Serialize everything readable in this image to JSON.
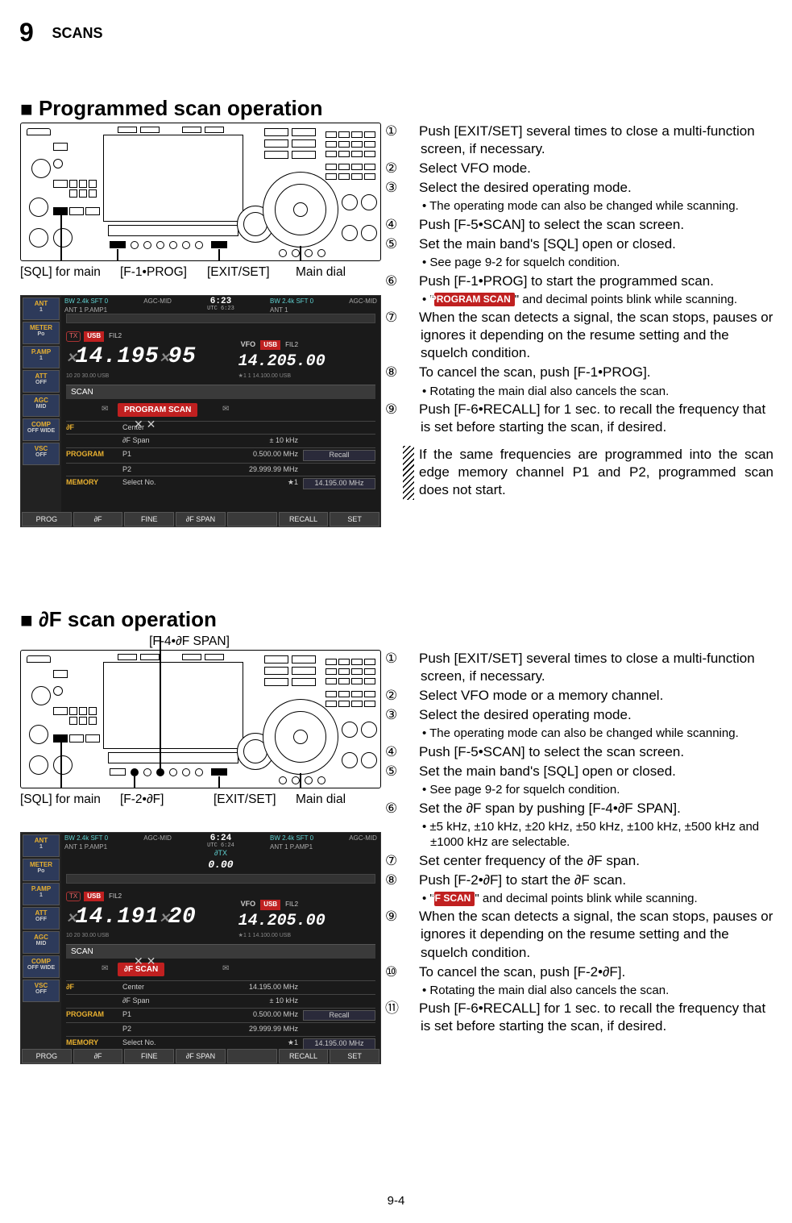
{
  "header": {
    "chapter_num": "9",
    "chapter_title": "SCANS"
  },
  "section1": {
    "heading": "Programmed scan operation",
    "callouts": [
      "[SQL] for main",
      "[F-1•PROG]",
      "[EXIT/SET]",
      "Main dial"
    ],
    "steps": [
      {
        "n": "①",
        "text": "Push [EXIT/SET] several times to close a multi-function screen, if necessary."
      },
      {
        "n": "②",
        "text": "Select VFO mode."
      },
      {
        "n": "③",
        "text": "Select the desired operating mode.",
        "sub": "• The operating mode can also be changed while scanning."
      },
      {
        "n": "④",
        "text": "Push [F-5•SCAN] to select the scan screen."
      },
      {
        "n": "⑤",
        "text": "Set the main band's [SQL] open or closed.",
        "sub": "• See page 9-2 for squelch condition."
      },
      {
        "n": "⑥",
        "text": "Push [F-1•PROG] to start the programmed scan.",
        "sub_pill_prefix": "• \"",
        "sub_pill": "PROGRAM SCAN",
        "sub_pill_suffix": "\" and decimal points blink while scanning."
      },
      {
        "n": "⑦",
        "text": "When the scan detects a signal, the scan stops, pauses or ignores it depending on the resume setting and the squelch condition."
      },
      {
        "n": "⑧",
        "text": "To cancel the scan, push [F-1•PROG].",
        "sub": "• Rotating the main dial also cancels the scan."
      },
      {
        "n": "⑨",
        "text": "Push [F-6•RECALL] for 1 sec. to recall the frequency that is set before starting the scan, if desired."
      }
    ],
    "note": "If the same frequencies are programmed into the scan edge memory channel P1 and P2, programmed scan does not start."
  },
  "section2": {
    "heading": "∂F scan operation",
    "top_callout": "[F-4•∂F SPAN]",
    "callouts": [
      "[SQL] for main",
      "[F-2•∂F]",
      "[EXIT/SET]",
      "Main dial"
    ],
    "steps": [
      {
        "n": "①",
        "text": "Push [EXIT/SET] several times to close a multi-function screen, if necessary."
      },
      {
        "n": "②",
        "text": "Select VFO mode or a memory channel."
      },
      {
        "n": "③",
        "text": "Select the desired operating mode.",
        "sub": "• The operating mode can also be changed while scanning."
      },
      {
        "n": "④",
        "text": "Push [F-5•SCAN] to select the scan screen."
      },
      {
        "n": "⑤",
        "text": "Set the main band's [SQL] open or closed.",
        "sub": "• See page 9-2 for squelch condition."
      },
      {
        "n": "⑥",
        "text": "Set the ∂F span by pushing [F-4•∂F SPAN].",
        "sub": "• ±5 kHz,  ±10 kHz,  ±20 kHz,  ±50 kHz,  ±100 kHz, ±500 kHz and ±1000 kHz are selectable."
      },
      {
        "n": "⑦",
        "text": "Set center frequency of the ∂F span."
      },
      {
        "n": "⑧",
        "text": "Push [F-2•∂F] to start the ∂F scan.",
        "sub_pill_prefix": "• \"",
        "sub_pill": "∂F SCAN",
        "sub_pill_suffix": "\" and decimal points blink while scanning."
      },
      {
        "n": "⑨",
        "text": "When the scan detects a signal, the scan stops, pauses or ignores it depending on the resume setting and the squelch condition."
      },
      {
        "n": "⑩",
        "text": "To cancel the scan, push [F-2•∂F].",
        "sub": "• Rotating the main dial also cancels the scan."
      },
      {
        "n": "⑪",
        "text": "Push [F-6•RECALL] for 1 sec. to recall the frequency that is set before starting the scan, if desired."
      }
    ]
  },
  "screenshot1": {
    "sidebar": [
      {
        "t": "ANT",
        "s": "1"
      },
      {
        "t": "METER",
        "s": "Po"
      },
      {
        "t": "P.AMP",
        "s": "1"
      },
      {
        "t": "ATT",
        "s": "OFF"
      },
      {
        "t": "AGC",
        "s": "MID"
      },
      {
        "t": "COMP",
        "s": "OFF WIDE"
      },
      {
        "t": "VSC",
        "s": "OFF"
      }
    ],
    "botbar": [
      "PROG",
      "∂F",
      "FINE",
      "∂F SPAN",
      "",
      "RECALL",
      "SET"
    ],
    "topinfo_left": "BW 2.4k  SFT   0",
    "topinfo_left2": "ANT 1   P.AMP1",
    "agc": "AGC-MID",
    "clock_time": "6:23",
    "clock_sub": "UTC 6:23",
    "topinfo_right": "BW 2.4k  SFT   0",
    "topinfo_right2": "ANT 1",
    "agc_r": "AGC-MID",
    "freq_main": "14.195.95",
    "meter_text": "10 20 30.00 USB",
    "vfo_label": "VFO",
    "usb": "USB",
    "fil": "FIL2",
    "freq_sub": "14.205.00",
    "sub_info": "★1   1   14.100.00  USB",
    "scan_bar": "SCAN",
    "red_label": "PROGRAM SCAN",
    "table_rows": [
      {
        "c1": "∂F",
        "c2": "Center",
        "c3": "",
        "c4": ""
      },
      {
        "c1": "",
        "c2": "∂F Span",
        "c3": "±   10   kHz",
        "c4": ""
      },
      {
        "c1": "PROGRAM",
        "c2": "P1",
        "c3": "0.500.00  MHz",
        "c4": "Recall"
      },
      {
        "c1": "",
        "c2": "P2",
        "c3": "29.999.99  MHz",
        "c4": ""
      },
      {
        "c1": "MEMORY",
        "c2": "Select  No.",
        "c3": "★1",
        "c4": "14.195.00  MHz"
      }
    ]
  },
  "screenshot2": {
    "sidebar": [
      {
        "t": "ANT",
        "s": "1"
      },
      {
        "t": "METER",
        "s": "Po"
      },
      {
        "t": "P.AMP",
        "s": "1"
      },
      {
        "t": "ATT",
        "s": "OFF"
      },
      {
        "t": "AGC",
        "s": "MID"
      },
      {
        "t": "COMP",
        "s": "OFF WIDE"
      },
      {
        "t": "VSC",
        "s": "OFF"
      }
    ],
    "botbar": [
      "PROG",
      "∂F",
      "FINE",
      "∂F SPAN",
      "",
      "RECALL",
      "SET"
    ],
    "topinfo_left": "BW 2.4k  SFT   0",
    "topinfo_left2": "ANT 1   P.AMP1",
    "agc": "AGC-MID",
    "clock_time": "6:24",
    "clock_sub": "UTC 6:24",
    "topinfo_right": "BW 2.4k  SFT   0",
    "topinfo_right2": "ANT 1      P.AMP1",
    "agc_r": "AGC-MID",
    "rtx": "∂TX",
    "rtx_val": "0.00",
    "freq_main": "14.191.20",
    "meter_text": "10 20 30.00 USB",
    "vfo_label": "VFO",
    "usb": "USB",
    "fil": "FIL2",
    "freq_sub": "14.205.00",
    "sub_info": "★1   1   14.100.00  USB",
    "scan_bar": "SCAN",
    "red_label": "∂F SCAN",
    "table_rows": [
      {
        "c1": "∂F",
        "c2": "Center",
        "c3": "14.195.00  MHz",
        "c4": ""
      },
      {
        "c1": "",
        "c2": "∂F Span",
        "c3": "±   10   kHz",
        "c4": ""
      },
      {
        "c1": "PROGRAM",
        "c2": "P1",
        "c3": "0.500.00  MHz",
        "c4": "Recall"
      },
      {
        "c1": "",
        "c2": "P2",
        "c3": "29.999.99  MHz",
        "c4": ""
      },
      {
        "c1": "MEMORY",
        "c2": "Select  No.",
        "c3": "★1",
        "c4": "14.195.00  MHz"
      }
    ]
  },
  "footer": {
    "pagenum": "9-4"
  },
  "colors": {
    "red_pill_bg": "#c02020",
    "icon_ylw": "#e8b030"
  }
}
